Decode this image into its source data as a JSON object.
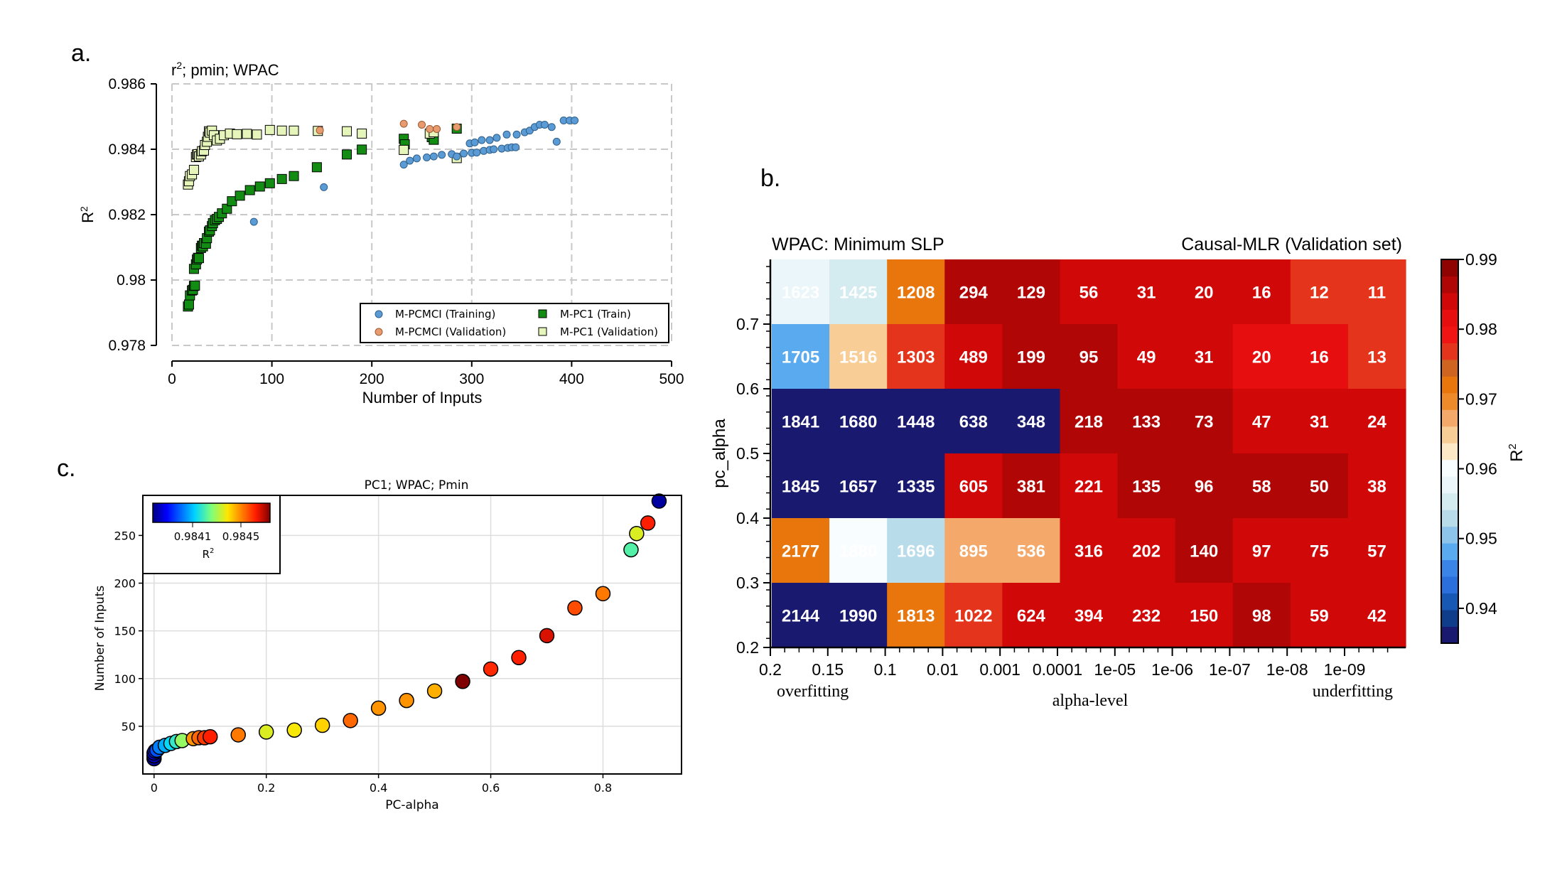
{
  "panels": {
    "a": "a.",
    "b": "b.",
    "c": "c."
  },
  "colors": {
    "pcmci_train": "#5b9bd5",
    "pcmci_valid": "#e89b6f",
    "pc1_train": "#138c13",
    "pc1_valid": "#e6f5b9"
  },
  "chart_data": [
    {
      "id": "a",
      "type": "scatter",
      "title": "r²; pmin; WPAC",
      "title_main": "r",
      "title_sup": "2",
      "title_rest": "; pmin; WPAC",
      "xlabel": "Number of Inputs",
      "ylabel": "R",
      "ylabel_sup": "2",
      "xlim": [
        0,
        500
      ],
      "ylim": [
        0.978,
        0.986
      ],
      "xticks": [
        0,
        100,
        200,
        300,
        400,
        500
      ],
      "xtick_labels": [
        "0",
        "100",
        "200",
        "300",
        "400",
        "500"
      ],
      "yticks": [
        0.978,
        0.98,
        0.982,
        0.984,
        0.986
      ],
      "ytick_labels": [
        "0.978",
        "0.98",
        "0.982",
        "0.984",
        "0.986"
      ],
      "grid": true,
      "legend_position": "lower-right",
      "series": [
        {
          "name": "M-PCMCI (Training)",
          "marker": "circle",
          "color": "#5b9bd5",
          "points": [
            [
              82,
              0.98178
            ],
            [
              152,
              0.98284
            ],
            [
              232,
              0.98353
            ],
            [
              238,
              0.98365
            ],
            [
              245,
              0.98372
            ],
            [
              255,
              0.98375
            ],
            [
              262,
              0.98378
            ],
            [
              270,
              0.98383
            ],
            [
              280,
              0.98385
            ],
            [
              285,
              0.98378
            ],
            [
              292,
              0.98387
            ],
            [
              300,
              0.98389
            ],
            [
              305,
              0.9839
            ],
            [
              312,
              0.98395
            ],
            [
              318,
              0.98398
            ],
            [
              322,
              0.984
            ],
            [
              330,
              0.98402
            ],
            [
              336,
              0.98404
            ],
            [
              340,
              0.98406
            ],
            [
              344,
              0.98406
            ],
            [
              298,
              0.98418
            ],
            [
              303,
              0.98421
            ],
            [
              310,
              0.98428
            ],
            [
              318,
              0.98428
            ],
            [
              325,
              0.98435
            ],
            [
              335,
              0.98445
            ],
            [
              345,
              0.98445
            ],
            [
              353,
              0.98452
            ],
            [
              358,
              0.98457
            ],
            [
              363,
              0.98468
            ],
            [
              368,
              0.98475
            ],
            [
              373,
              0.98475
            ],
            [
              380,
              0.98468
            ],
            [
              385,
              0.98423
            ],
            [
              392,
              0.98488
            ],
            [
              398,
              0.98488
            ],
            [
              403,
              0.98488
            ]
          ]
        },
        {
          "name": "M-PCMCI (Validation)",
          "marker": "circle",
          "color": "#e89b6f",
          "points": [
            [
              148,
              0.98458
            ],
            [
              232,
              0.98478
            ],
            [
              250,
              0.98475
            ],
            [
              258,
              0.98462
            ],
            [
              265,
              0.98462
            ],
            [
              285,
              0.98468
            ]
          ]
        },
        {
          "name": "M-PC1 (Train)",
          "marker": "square",
          "color": "#138c13",
          "points": [
            [
              16,
              0.97919
            ],
            [
              17,
              0.97925
            ],
            [
              18,
              0.97953
            ],
            [
              20,
              0.97968
            ],
            [
              21,
              0.9797
            ],
            [
              22,
              0.97982
            ],
            [
              23,
              0.97983
            ],
            [
              22,
              0.98034
            ],
            [
              24,
              0.98048
            ],
            [
              25,
              0.98063
            ],
            [
              26,
              0.98068
            ],
            [
              27,
              0.98067
            ],
            [
              29,
              0.98098
            ],
            [
              30,
              0.98105
            ],
            [
              31,
              0.98103
            ],
            [
              32,
              0.98113
            ],
            [
              34,
              0.98111
            ],
            [
              35,
              0.98128
            ],
            [
              37,
              0.98148
            ],
            [
              38,
              0.98152
            ],
            [
              40,
              0.98165
            ],
            [
              41,
              0.98174
            ],
            [
              43,
              0.98183
            ],
            [
              45,
              0.98187
            ],
            [
              47,
              0.98193
            ],
            [
              50,
              0.98204
            ],
            [
              55,
              0.98218
            ],
            [
              60,
              0.98241
            ],
            [
              68,
              0.98258
            ],
            [
              78,
              0.98275
            ],
            [
              88,
              0.98286
            ],
            [
              98,
              0.98296
            ],
            [
              110,
              0.98309
            ],
            [
              122,
              0.98318
            ],
            [
              145,
              0.98345
            ],
            [
              175,
              0.98384
            ],
            [
              190,
              0.98399
            ],
            [
              232,
              0.98432
            ],
            [
              233,
              0.98415
            ],
            [
              260,
              0.98437
            ],
            [
              262,
              0.98429
            ],
            [
              285,
              0.98463
            ]
          ]
        },
        {
          "name": "M-PC1 (Validation)",
          "marker": "square",
          "color": "#e6f5b9",
          "points": [
            [
              16,
              0.98292
            ],
            [
              17,
              0.98302
            ],
            [
              18,
              0.98318
            ],
            [
              20,
              0.98323
            ],
            [
              22,
              0.98337
            ],
            [
              24,
              0.98376
            ],
            [
              25,
              0.98384
            ],
            [
              26,
              0.98385
            ],
            [
              27,
              0.98378
            ],
            [
              29,
              0.98384
            ],
            [
              30,
              0.98394
            ],
            [
              32,
              0.98396
            ],
            [
              33,
              0.98413
            ],
            [
              35,
              0.98423
            ],
            [
              36,
              0.98438
            ],
            [
              37,
              0.98455
            ],
            [
              38,
              0.98451
            ],
            [
              40,
              0.98457
            ],
            [
              42,
              0.98443
            ],
            [
              45,
              0.98427
            ],
            [
              48,
              0.98432
            ],
            [
              52,
              0.98443
            ],
            [
              58,
              0.98448
            ],
            [
              65,
              0.98446
            ],
            [
              75,
              0.98447
            ],
            [
              85,
              0.98445
            ],
            [
              98,
              0.98459
            ],
            [
              110,
              0.98457
            ],
            [
              122,
              0.98457
            ],
            [
              146,
              0.98456
            ],
            [
              175,
              0.98455
            ],
            [
              190,
              0.98448
            ],
            [
              232,
              0.98398
            ],
            [
              258,
              0.98448
            ],
            [
              262,
              0.98452
            ],
            [
              285,
              0.98373
            ]
          ]
        }
      ]
    },
    {
      "id": "b",
      "type": "heatmap",
      "title_left": "WPAC: Minimum SLP",
      "title_right": "Causal-MLR (Validation set)",
      "xlabel": "alpha-level",
      "ylabel": "pc_alpha",
      "x_categories": [
        "0.2",
        "0.15",
        "0.1",
        "0.01",
        "0.001",
        "0.0001",
        "1e-05",
        "1e-06",
        "1e-07",
        "1e-08",
        "1e-09"
      ],
      "x_note_left": "overfitting",
      "x_note_right": "underfitting",
      "y_categories": [
        "0.7",
        "0.6",
        "0.5",
        "0.4",
        "0.3",
        "0.2"
      ],
      "yticks": [
        0.2,
        0.3,
        0.4,
        0.5,
        0.6,
        0.7
      ],
      "ytick_labels": [
        "0.2",
        "0.3",
        "0.4",
        "0.5",
        "0.6",
        "0.7"
      ],
      "ylim": [
        0.2,
        0.8
      ],
      "cell_counts": [
        [
          1623,
          1425,
          1208,
          294,
          129,
          56,
          31,
          20,
          16,
          12,
          11
        ],
        [
          1705,
          1516,
          1303,
          489,
          199,
          95,
          49,
          31,
          20,
          16,
          13
        ],
        [
          1841,
          1680,
          1448,
          638,
          348,
          218,
          133,
          73,
          47,
          31,
          24
        ],
        [
          1845,
          1657,
          1335,
          605,
          381,
          221,
          135,
          96,
          58,
          50,
          38
        ],
        [
          2177,
          1880,
          1696,
          895,
          536,
          316,
          202,
          140,
          97,
          75,
          57
        ],
        [
          2144,
          1990,
          1813,
          1022,
          624,
          394,
          232,
          150,
          98,
          59,
          42
        ]
      ],
      "cell_r2": [
        [
          0.957,
          0.955,
          0.972,
          0.987,
          0.987,
          0.983,
          0.983,
          0.983,
          0.983,
          0.977,
          0.977
        ],
        [
          0.948,
          0.966,
          0.977,
          0.985,
          0.987,
          0.987,
          0.983,
          0.983,
          0.981,
          0.981,
          0.977
        ],
        [
          0.936,
          0.936,
          0.936,
          0.936,
          0.936,
          0.987,
          0.987,
          0.987,
          0.983,
          0.983,
          0.983
        ],
        [
          0.936,
          0.936,
          0.936,
          0.983,
          0.987,
          0.983,
          0.987,
          0.987,
          0.987,
          0.987,
          0.983
        ],
        [
          0.972,
          0.959,
          0.953,
          0.968,
          0.968,
          0.983,
          0.983,
          0.987,
          0.983,
          0.983,
          0.983
        ],
        [
          0.936,
          0.936,
          0.972,
          0.977,
          0.983,
          0.983,
          0.983,
          0.983,
          0.987,
          0.983,
          0.983
        ]
      ],
      "colorbar": {
        "label": "R",
        "label_sup": "2",
        "range": [
          0.935,
          0.99
        ],
        "ticks": [
          0.94,
          0.95,
          0.96,
          0.97,
          0.98,
          0.99
        ],
        "tick_labels": [
          "0.94",
          "0.95",
          "0.96",
          "0.97",
          "0.98",
          "0.99"
        ],
        "colors": [
          "#191970",
          "#0f3d8c",
          "#1858b5",
          "#2a6fdb",
          "#3a84e8",
          "#5aaaf0",
          "#8cc4ec",
          "#b9dcea",
          "#d4ebf0",
          "#eaf6fa",
          "#f8fdff",
          "#fde9c6",
          "#f9cd96",
          "#f4a96a",
          "#ee8a2a",
          "#e9760c",
          "#cf6421",
          "#e4341c",
          "#f01414",
          "#e60e0e",
          "#d10808",
          "#b00606",
          "#900303"
        ]
      }
    },
    {
      "id": "c",
      "type": "scatter",
      "title": "PC1; WPAC; Pmin",
      "xlabel": "PC-alpha",
      "ylabel": "Number of Inputs",
      "xlim": [
        -0.02,
        0.94
      ],
      "ylim": [
        0,
        292
      ],
      "xticks": [
        0,
        0.2,
        0.4,
        0.6,
        0.8
      ],
      "xtick_labels": [
        "0",
        "0.2",
        "0.4",
        "0.6",
        "0.8"
      ],
      "yticks": [
        50,
        100,
        150,
        200,
        250
      ],
      "ytick_labels": [
        "50",
        "100",
        "150",
        "200",
        "250"
      ],
      "grid": true,
      "colorbar_label": "R",
      "colorbar_label_sup": "2",
      "colorbar_ticks": [
        "0.9841",
        "0.9845"
      ],
      "points": [
        {
          "x": 0.0,
          "y": 16,
          "r2": 0.98378
        },
        {
          "x": 0.0,
          "y": 19,
          "r2": 0.9838
        },
        {
          "x": 0.0,
          "y": 22,
          "r2": 0.98385
        },
        {
          "x": 0.002,
          "y": 24,
          "r2": 0.9839
        },
        {
          "x": 0.005,
          "y": 25,
          "r2": 0.98395
        },
        {
          "x": 0.01,
          "y": 28,
          "r2": 0.984
        },
        {
          "x": 0.02,
          "y": 30,
          "r2": 0.98405
        },
        {
          "x": 0.03,
          "y": 32,
          "r2": 0.9841
        },
        {
          "x": 0.04,
          "y": 34,
          "r2": 0.98415
        },
        {
          "x": 0.05,
          "y": 35,
          "r2": 0.98425
        },
        {
          "x": 0.07,
          "y": 37,
          "r2": 0.98445
        },
        {
          "x": 0.08,
          "y": 38,
          "r2": 0.9845
        },
        {
          "x": 0.09,
          "y": 38,
          "r2": 0.98455
        },
        {
          "x": 0.1,
          "y": 39,
          "r2": 0.98458
        },
        {
          "x": 0.15,
          "y": 41,
          "r2": 0.98448
        },
        {
          "x": 0.2,
          "y": 44,
          "r2": 0.98432
        },
        {
          "x": 0.25,
          "y": 46,
          "r2": 0.98435
        },
        {
          "x": 0.3,
          "y": 51,
          "r2": 0.98438
        },
        {
          "x": 0.35,
          "y": 56,
          "r2": 0.9845
        },
        {
          "x": 0.4,
          "y": 69,
          "r2": 0.98445
        },
        {
          "x": 0.45,
          "y": 77,
          "r2": 0.98445
        },
        {
          "x": 0.5,
          "y": 87,
          "r2": 0.98442
        },
        {
          "x": 0.55,
          "y": 97,
          "r2": 0.9847
        },
        {
          "x": 0.6,
          "y": 110,
          "r2": 0.98457
        },
        {
          "x": 0.65,
          "y": 122,
          "r2": 0.98458
        },
        {
          "x": 0.7,
          "y": 145,
          "r2": 0.98462
        },
        {
          "x": 0.75,
          "y": 174,
          "r2": 0.98453
        },
        {
          "x": 0.8,
          "y": 189,
          "r2": 0.98448
        },
        {
          "x": 0.85,
          "y": 235,
          "r2": 0.98418
        },
        {
          "x": 0.86,
          "y": 252,
          "r2": 0.98432
        },
        {
          "x": 0.88,
          "y": 263,
          "r2": 0.98458
        },
        {
          "x": 0.9,
          "y": 286,
          "r2": 0.98378
        }
      ]
    }
  ]
}
